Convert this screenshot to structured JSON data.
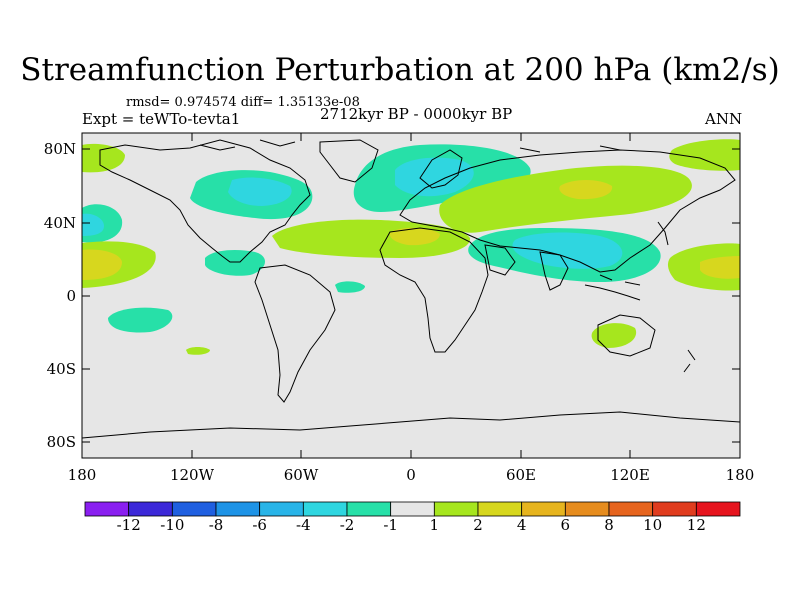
{
  "title": "Streamfunction Perturbation at 200 hPa (km2/s)",
  "stats": "rmsd= 0.974574 diff= 1.35133e-08",
  "experiment": "Expt = teWTo-tevta1",
  "period": "2712kyr BP - 0000kyr BP",
  "season": "ANN",
  "y_ticks": [
    "80N",
    "40N",
    "0",
    "40S",
    "80S"
  ],
  "x_ticks": [
    "180",
    "120W",
    "60W",
    "0",
    "60E",
    "120E",
    "180"
  ],
  "colorbar": {
    "labels": [
      "-12",
      "-10",
      "-8",
      "-6",
      "-4",
      "-2",
      "-1",
      "1",
      "2",
      "4",
      "6",
      "8",
      "10",
      "12"
    ],
    "colors": [
      "#8a1ff0",
      "#3c28d8",
      "#1f5fe0",
      "#1e93e6",
      "#28b4e8",
      "#2fd6e0",
      "#27e0a8",
      "#e6e6e6",
      "#a6e61e",
      "#d7d71e",
      "#e6b41e",
      "#e68c1e",
      "#e6641e",
      "#e03c1e",
      "#e6141e"
    ]
  },
  "colors": {
    "background": "#e6e6e6",
    "coastline": "#000000"
  }
}
